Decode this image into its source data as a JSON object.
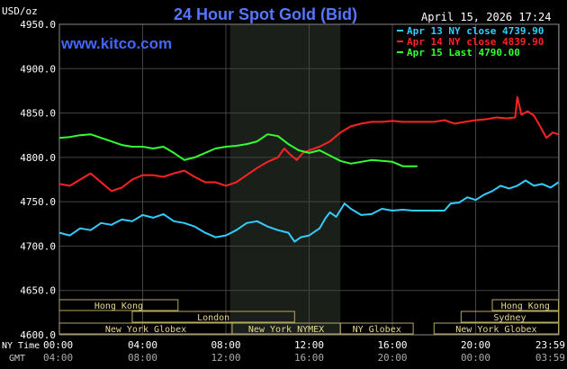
{
  "chart_data": {
    "type": "line",
    "title": "24 Hour Spot Gold (Bid)",
    "timestamp": "April 15, 2026 17:24",
    "brand": "www.kitco.com",
    "ylabel": "USD/oz",
    "ylim": [
      4600,
      4950
    ],
    "yticks": [
      "4950.0",
      "4900.0",
      "4850.0",
      "4800.0",
      "4750.0",
      "4700.0",
      "4650.0",
      "4600.0"
    ],
    "y_tick_values": [
      4950,
      4900,
      4850,
      4800,
      4750,
      4700,
      4650,
      4600
    ],
    "xlim": [
      0,
      24
    ],
    "grid": true,
    "x_row_labels": {
      "ny": "NY Time",
      "gmt": "GMT"
    },
    "xticks_ny": [
      "00:00",
      "04:00",
      "08:00",
      "12:00",
      "16:00",
      "20:00",
      "23:59"
    ],
    "xticks_gmt": [
      "04:00",
      "08:00",
      "12:00",
      "16:00",
      "20:00",
      "00:00",
      "03:59"
    ],
    "x_tick_hours": [
      0,
      4,
      8,
      12,
      16,
      20,
      23.98
    ],
    "nymex_shade": [
      8.2,
      13.5
    ],
    "legend_position": "top-right",
    "legend": [
      {
        "label": "Apr 13 NY close 4739.90",
        "color": "#33ccff"
      },
      {
        "label": "Apr 14 NY close 4839.90",
        "color": "#ff2222"
      },
      {
        "label": "Apr 15 Last 4790.00",
        "color": "#33ff33"
      }
    ],
    "sessions": [
      {
        "name": "Hong Kong",
        "start": 0,
        "end": 5.7,
        "row": 0
      },
      {
        "name": "Hong Kong",
        "start": 20.8,
        "end": 23.98,
        "row": 0
      },
      {
        "name": "London",
        "start": 3.5,
        "end": 11.3,
        "row": 1
      },
      {
        "name": "Sydney",
        "start": 19.3,
        "end": 23.98,
        "row": 1
      },
      {
        "name": "New York Globex",
        "start": 0,
        "end": 8.3,
        "row": 2
      },
      {
        "name": "New York NYMEX",
        "start": 8.3,
        "end": 13.5,
        "row": 2
      },
      {
        "name": "NY Globex",
        "start": 13.5,
        "end": 17.0,
        "row": 2
      },
      {
        "name": "New York Globex",
        "start": 18.0,
        "end": 23.98,
        "row": 2
      }
    ],
    "series": [
      {
        "name": "Apr 13 NY close 4739.90",
        "color": "#33ccff",
        "points": [
          [
            0,
            4715
          ],
          [
            0.5,
            4712
          ],
          [
            1,
            4720
          ],
          [
            1.5,
            4718
          ],
          [
            2,
            4726
          ],
          [
            2.5,
            4724
          ],
          [
            3,
            4730
          ],
          [
            3.5,
            4728
          ],
          [
            4,
            4735
          ],
          [
            4.5,
            4732
          ],
          [
            5,
            4736
          ],
          [
            5.5,
            4728
          ],
          [
            6,
            4726
          ],
          [
            6.5,
            4722
          ],
          [
            7,
            4715
          ],
          [
            7.5,
            4710
          ],
          [
            8,
            4712
          ],
          [
            8.5,
            4718
          ],
          [
            9,
            4726
          ],
          [
            9.5,
            4728
          ],
          [
            10,
            4722
          ],
          [
            10.5,
            4718
          ],
          [
            11,
            4715
          ],
          [
            11.3,
            4705
          ],
          [
            11.6,
            4710
          ],
          [
            12,
            4712
          ],
          [
            12.5,
            4720
          ],
          [
            12.8,
            4732
          ],
          [
            13,
            4738
          ],
          [
            13.3,
            4733
          ],
          [
            13.7,
            4748
          ],
          [
            14,
            4742
          ],
          [
            14.5,
            4735
          ],
          [
            15,
            4736
          ],
          [
            15.5,
            4742
          ],
          [
            16,
            4740
          ],
          [
            16.5,
            4741
          ],
          [
            17,
            4740
          ],
          [
            17.5,
            4740
          ],
          [
            18,
            4740
          ],
          [
            18.5,
            4740
          ],
          [
            18.8,
            4748
          ],
          [
            19.2,
            4749
          ],
          [
            19.6,
            4755
          ],
          [
            20,
            4752
          ],
          [
            20.4,
            4758
          ],
          [
            20.8,
            4762
          ],
          [
            21.2,
            4768
          ],
          [
            21.6,
            4765
          ],
          [
            22,
            4768
          ],
          [
            22.4,
            4774
          ],
          [
            22.8,
            4768
          ],
          [
            23.2,
            4770
          ],
          [
            23.6,
            4766
          ],
          [
            23.98,
            4772
          ]
        ]
      },
      {
        "name": "Apr 14 NY close 4839.90",
        "color": "#ff2222",
        "points": [
          [
            0,
            4770
          ],
          [
            0.5,
            4768
          ],
          [
            1,
            4775
          ],
          [
            1.5,
            4782
          ],
          [
            2,
            4772
          ],
          [
            2.5,
            4762
          ],
          [
            3,
            4766
          ],
          [
            3.5,
            4775
          ],
          [
            4,
            4780
          ],
          [
            4.5,
            4780
          ],
          [
            5,
            4778
          ],
          [
            5.5,
            4782
          ],
          [
            6,
            4785
          ],
          [
            6.5,
            4778
          ],
          [
            7,
            4772
          ],
          [
            7.5,
            4772
          ],
          [
            8,
            4768
          ],
          [
            8.5,
            4772
          ],
          [
            9,
            4780
          ],
          [
            9.5,
            4788
          ],
          [
            10,
            4795
          ],
          [
            10.5,
            4800
          ],
          [
            10.8,
            4810
          ],
          [
            11.1,
            4803
          ],
          [
            11.4,
            4797
          ],
          [
            11.7,
            4805
          ],
          [
            12,
            4808
          ],
          [
            12.5,
            4812
          ],
          [
            13,
            4818
          ],
          [
            13.5,
            4828
          ],
          [
            14,
            4835
          ],
          [
            14.5,
            4838
          ],
          [
            15,
            4840
          ],
          [
            15.5,
            4840
          ],
          [
            16,
            4841
          ],
          [
            16.5,
            4840
          ],
          [
            17,
            4840
          ],
          [
            17.5,
            4840
          ],
          [
            18,
            4840
          ],
          [
            18.5,
            4842
          ],
          [
            19,
            4838
          ],
          [
            19.5,
            4840
          ],
          [
            20,
            4842
          ],
          [
            20.5,
            4843
          ],
          [
            21,
            4845
          ],
          [
            21.5,
            4844
          ],
          [
            21.9,
            4845
          ],
          [
            22,
            4868
          ],
          [
            22.2,
            4848
          ],
          [
            22.5,
            4852
          ],
          [
            22.8,
            4847
          ],
          [
            23.1,
            4835
          ],
          [
            23.4,
            4822
          ],
          [
            23.7,
            4828
          ],
          [
            23.98,
            4826
          ]
        ]
      },
      {
        "name": "Apr 15 Last 4790.00",
        "color": "#33ff33",
        "points": [
          [
            0,
            4822
          ],
          [
            0.5,
            4823
          ],
          [
            1,
            4825
          ],
          [
            1.5,
            4826
          ],
          [
            2,
            4822
          ],
          [
            2.5,
            4818
          ],
          [
            3,
            4814
          ],
          [
            3.5,
            4812
          ],
          [
            4,
            4812
          ],
          [
            4.5,
            4810
          ],
          [
            5,
            4812
          ],
          [
            5.5,
            4805
          ],
          [
            6,
            4797
          ],
          [
            6.5,
            4800
          ],
          [
            7,
            4805
          ],
          [
            7.5,
            4810
          ],
          [
            8,
            4812
          ],
          [
            8.5,
            4813
          ],
          [
            9,
            4815
          ],
          [
            9.5,
            4818
          ],
          [
            10,
            4826
          ],
          [
            10.5,
            4824
          ],
          [
            11,
            4815
          ],
          [
            11.5,
            4808
          ],
          [
            12,
            4805
          ],
          [
            12.5,
            4808
          ],
          [
            13,
            4802
          ],
          [
            13.5,
            4796
          ],
          [
            14,
            4793
          ],
          [
            14.5,
            4795
          ],
          [
            15,
            4797
          ],
          [
            15.5,
            4796
          ],
          [
            16,
            4795
          ],
          [
            16.5,
            4790
          ],
          [
            17,
            4790
          ],
          [
            17.2,
            4790
          ]
        ]
      }
    ]
  }
}
